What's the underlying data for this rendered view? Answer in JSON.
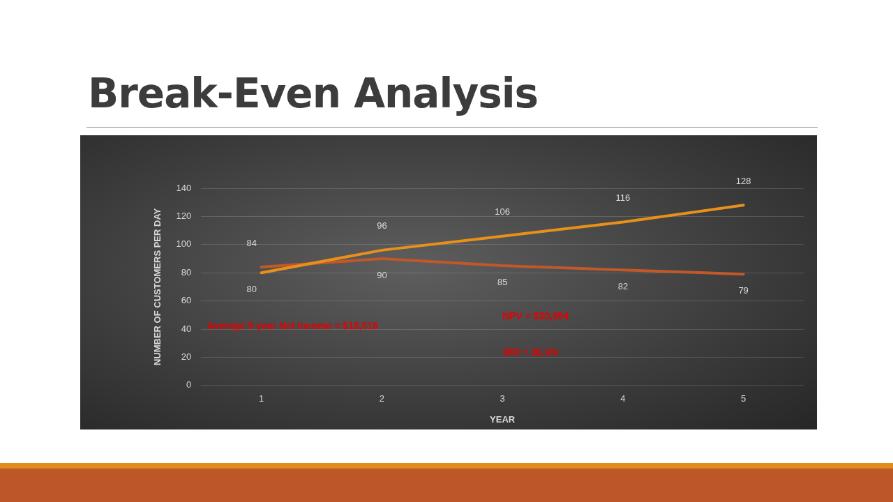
{
  "chart_data": {
    "type": "line",
    "title": "Break-Even Analysis",
    "xlabel": "YEAR",
    "ylabel": "NUMBER OF CUSTOMERS PER DAY",
    "categories": [
      "1",
      "2",
      "3",
      "4",
      "5"
    ],
    "series": [
      {
        "color": "#e8901a",
        "values": [
          80,
          96,
          106,
          116,
          128
        ]
      },
      {
        "color": "#c0582a",
        "values": [
          84,
          90,
          85,
          82,
          79
        ]
      }
    ],
    "ylim": [
      0,
      140
    ],
    "yticks": [
      0,
      20,
      40,
      60,
      80,
      100,
      120,
      140
    ],
    "grid": "y",
    "legend": false,
    "marker": "none",
    "line_style": "solid",
    "data_labels": true,
    "annotations": [
      "Average 5 year Net Income = $18,016",
      "NPV = $30,654",
      "IRR = 36.3%"
    ]
  }
}
